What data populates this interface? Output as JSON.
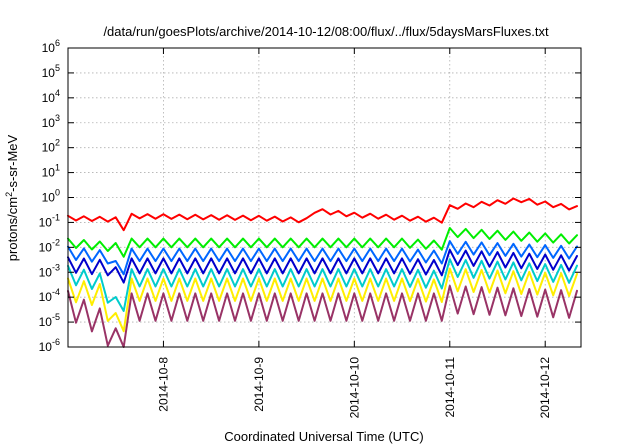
{
  "chart_data": {
    "type": "line",
    "title": "/data/run/goesPlots/archive/2014-10-12/08:00/flux/../flux/5daysMarsFluxes.txt",
    "xlabel": "Coordinated Universal Time (UTC)",
    "ylabel": {
      "base": "protons/cm",
      "sup": "2",
      "rest": "-s-sr-MeV"
    },
    "yscale": "log",
    "ylim": [
      1e-06,
      1000000.0
    ],
    "xlim": [
      "2014-10-07 00:00",
      "2014-10-12 09:00"
    ],
    "grid": true,
    "y_ticks": [
      {
        "base": "10",
        "exp": "-6",
        "value": 1e-06
      },
      {
        "base": "10",
        "exp": "-5",
        "value": 1e-05
      },
      {
        "base": "10",
        "exp": "-4",
        "value": 0.0001
      },
      {
        "base": "10",
        "exp": "-3",
        "value": 0.001
      },
      {
        "base": "10",
        "exp": "-2",
        "value": 0.01
      },
      {
        "base": "10",
        "exp": "-1",
        "value": 0.1
      },
      {
        "base": "10",
        "exp": "0",
        "value": 1
      },
      {
        "base": "10",
        "exp": "1",
        "value": 10
      },
      {
        "base": "10",
        "exp": "2",
        "value": 100
      },
      {
        "base": "10",
        "exp": "3",
        "value": 1000
      },
      {
        "base": "10",
        "exp": "4",
        "value": 10000
      },
      {
        "base": "10",
        "exp": "5",
        "value": 100000
      },
      {
        "base": "10",
        "exp": "6",
        "value": 1000000
      }
    ],
    "x_ticks": [
      {
        "label": "2014-10-8",
        "value": "2014-10-08 00:00"
      },
      {
        "label": "2014-10-9",
        "value": "2014-10-09 00:00"
      },
      {
        "label": "2014-10-10",
        "value": "2014-10-10 00:00"
      },
      {
        "label": "2014-10-11",
        "value": "2014-10-11 00:00"
      },
      {
        "label": "2014-10-12",
        "value": "2014-10-12 00:00"
      }
    ],
    "series": [
      {
        "color": "#ff0000",
        "base_values": [
          0.15,
          0.13,
          0.06,
          0.18,
          0.16,
          0.15,
          0.12,
          0.3,
          0.2,
          0.12,
          0.4,
          0.8,
          0.5,
          0.35
        ],
        "base_x": [
          "2014-10-07 00:00",
          "2014-10-07 12:00",
          "2014-10-07 14:00",
          "2014-10-07 16:00",
          "2014-10-08 12:00",
          "2014-10-09 00:00",
          "2014-10-09 12:00",
          "2014-10-09 14:00",
          "2014-10-10 00:00",
          "2014-10-10 22:00",
          "2014-10-11 00:00",
          "2014-10-11 18:00",
          "2014-10-12 02:00",
          "2014-10-12 09:00"
        ],
        "ripple_decades": 0.18
      },
      {
        "color": "#00ee00",
        "base_values": [
          0.015,
          0.01,
          0.004,
          0.015,
          0.015,
          0.015,
          0.015,
          0.012,
          0.04,
          0.02
        ],
        "base_x": [
          "2014-10-07 00:00",
          "2014-10-07 12:00",
          "2014-10-07 13:30",
          "2014-10-07 15:00",
          "2014-10-08 12:00",
          "2014-10-09 12:00",
          "2014-10-10 12:00",
          "2014-10-10 22:00",
          "2014-10-11 00:00",
          "2014-10-12 09:00"
        ],
        "ripple_decades": 0.35
      },
      {
        "color": "#0066ff",
        "base_values": [
          0.006,
          0.004,
          0.0008,
          0.005,
          0.005,
          0.005,
          0.005,
          0.004,
          0.01,
          0.006
        ],
        "base_x": [
          "2014-10-07 00:00",
          "2014-10-07 10:00",
          "2014-10-07 13:30",
          "2014-10-07 15:00",
          "2014-10-08 12:00",
          "2014-10-09 12:00",
          "2014-10-10 12:00",
          "2014-10-10 22:00",
          "2014-10-11 00:00",
          "2014-10-12 09:00"
        ],
        "ripple_decades": 0.5
      },
      {
        "color": "#0000cc",
        "base_values": [
          0.002,
          0.0015,
          0.0005,
          0.0018,
          0.0018,
          0.0018,
          0.0018,
          0.0015,
          0.004,
          0.0022
        ],
        "base_x": [
          "2014-10-07 00:00",
          "2014-10-07 10:00",
          "2014-10-07 13:30",
          "2014-10-07 15:00",
          "2014-10-08 12:00",
          "2014-10-09 12:00",
          "2014-10-10 12:00",
          "2014-10-10 22:00",
          "2014-10-11 00:00",
          "2014-10-12 09:00"
        ],
        "ripple_decades": 0.6
      },
      {
        "color": "#00cccc",
        "base_values": [
          0.0008,
          0.0004,
          2e-05,
          0.0006,
          0.0006,
          0.0006,
          0.0006,
          0.0005,
          0.0015,
          0.0008
        ],
        "base_x": [
          "2014-10-07 00:00",
          "2014-10-07 08:00",
          "2014-10-07 13:30",
          "2014-10-07 15:00",
          "2014-10-08 12:00",
          "2014-10-09 12:00",
          "2014-10-10 12:00",
          "2014-10-10 22:00",
          "2014-10-11 00:00",
          "2014-10-12 09:00"
        ],
        "ripple_decades": 0.7
      },
      {
        "color": "#ffee00",
        "base_values": [
          0.0002,
          0.00012,
          3e-06,
          0.0002,
          0.0002,
          0.0002,
          0.0002,
          0.00018,
          0.0005,
          0.0003
        ],
        "base_x": [
          "2014-10-07 00:00",
          "2014-10-07 08:00",
          "2014-10-07 13:30",
          "2014-10-07 15:00",
          "2014-10-08 12:00",
          "2014-10-09 12:00",
          "2014-10-10 12:00",
          "2014-10-10 22:00",
          "2014-10-11 00:00",
          "2014-10-12 09:00"
        ],
        "ripple_decades": 0.9
      },
      {
        "color": "#993366",
        "base_values": [
          5e-05,
          1e-05,
          8e-07,
          4e-05,
          4e-05,
          4e-05,
          4e-05,
          4e-05,
          8e-05,
          5e-05
        ],
        "base_x": [
          "2014-10-07 00:00",
          "2014-10-07 08:00",
          "2014-10-07 13:30",
          "2014-10-07 15:00",
          "2014-10-08 12:00",
          "2014-10-09 12:00",
          "2014-10-10 12:00",
          "2014-10-10 22:00",
          "2014-10-11 00:00",
          "2014-10-12 09:00"
        ],
        "ripple_decades": 1.1
      }
    ]
  }
}
